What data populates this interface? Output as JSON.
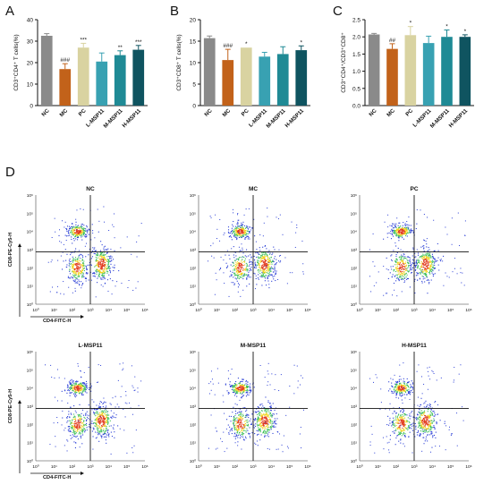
{
  "panels": {
    "A": "A",
    "B": "B",
    "C": "C",
    "D": "D"
  },
  "colors": {
    "NC": "#8a8a8a",
    "MC": "#c2621a",
    "PC": "#d9d3a1",
    "L-MSP11": "#38a1b2",
    "M-MSP11": "#1f8a95",
    "H-MSP11": "#0f5460"
  },
  "chart_data": [
    {
      "type": "bar",
      "panel": "A",
      "ylabel": "CD3⁺CD4⁺ T cells(%)",
      "categories": [
        "NC",
        "MC",
        "PC",
        "L-MSP11",
        "M-MSP11",
        "H-MSP11"
      ],
      "values": [
        32.5,
        17,
        27,
        20.5,
        23.5,
        26
      ],
      "errors": [
        1,
        2.5,
        2,
        4,
        2,
        2
      ],
      "annotations": [
        "",
        "###",
        "***",
        "",
        "**",
        "***"
      ],
      "ylim": [
        0,
        40
      ],
      "yticks": [
        "0",
        "10",
        "20",
        "30",
        "40"
      ]
    },
    {
      "type": "bar",
      "panel": "B",
      "ylabel": "CD3⁺CD8⁺ T cells(%)",
      "categories": [
        "NC",
        "MC",
        "PC",
        "L-MSP11",
        "M-MSP11",
        "H-MSP11"
      ],
      "values": [
        15.7,
        10.6,
        13.5,
        11.4,
        12,
        12.9
      ],
      "errors": [
        0.5,
        2.5,
        0,
        1,
        1.7,
        1
      ],
      "annotations": [
        "",
        "###",
        "*",
        "",
        "",
        "*"
      ],
      "ylim": [
        0,
        20
      ],
      "yticks": [
        "0",
        "5",
        "10",
        "15",
        "20"
      ]
    },
    {
      "type": "bar",
      "panel": "C",
      "ylabel": "CD3⁺CD4⁺/CD3⁺CD8⁺",
      "categories": [
        "NC",
        "MC",
        "PC",
        "L-MSP11",
        "M-MSP11",
        "H-MSP11"
      ],
      "values": [
        2.07,
        1.65,
        2.05,
        1.82,
        2.0,
        2.0
      ],
      "errors": [
        0.03,
        0.15,
        0.25,
        0.2,
        0.2,
        0.06
      ],
      "annotations": [
        "",
        "##",
        "*",
        "",
        "*",
        "*"
      ],
      "ylim": [
        0,
        2.5
      ],
      "yticks": [
        "0.0",
        "0.5",
        "1.0",
        "1.5",
        "2.0",
        "2.5"
      ]
    }
  ],
  "flow": {
    "ylabel": "CD8-PE-Cy5-H",
    "xlabel": "CD4-FITC-H",
    "xticks": [
      "10⁰",
      "10¹",
      "10²",
      "10³",
      "10⁴",
      "10⁵",
      "10⁶"
    ],
    "yticks": [
      "10⁰",
      "10¹",
      "10²",
      "10³",
      "10⁴",
      "10⁵",
      "10⁶"
    ],
    "plots": [
      {
        "title": "NC"
      },
      {
        "title": "MC"
      },
      {
        "title": "PC"
      },
      {
        "title": "L-MSP11"
      },
      {
        "title": "M-MSP11"
      },
      {
        "title": "H-MSP11"
      }
    ]
  }
}
